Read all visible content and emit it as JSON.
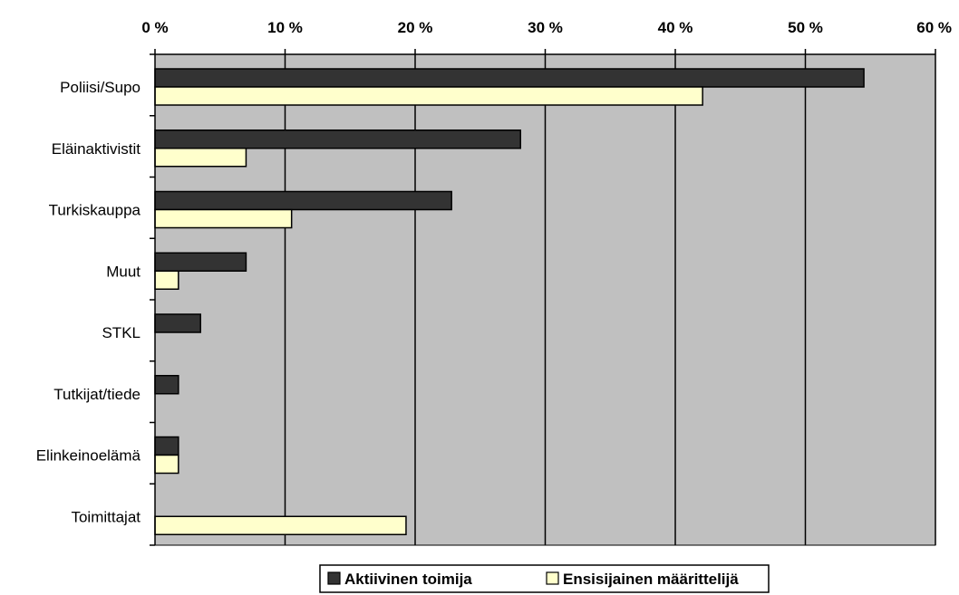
{
  "chart_data": {
    "type": "bar",
    "orientation": "horizontal",
    "categories": [
      "Poliisi/Supo",
      "Eläinaktivistit",
      "Turkiskauppa",
      "Muut",
      "STKL",
      "Tutkijat/tiede",
      "Elinkeinoelämä",
      "Toimittajat"
    ],
    "series": [
      {
        "name": "Aktiivinen toimija",
        "values": [
          54.5,
          28.1,
          22.8,
          7.0,
          3.5,
          1.8,
          1.8,
          0
        ],
        "color": "#333333"
      },
      {
        "name": "Ensisijainen määrittelijä",
        "values": [
          42.1,
          7.0,
          10.5,
          1.8,
          0,
          0,
          1.8,
          19.3
        ],
        "color": "#ffffcc"
      }
    ],
    "xlim": [
      0,
      60
    ],
    "xticks": [
      0,
      10,
      20,
      30,
      40,
      50,
      60
    ],
    "tick_labels": [
      "0 %",
      "10 %",
      "20 %",
      "30 %",
      "40 %",
      "50 %",
      "60 %"
    ],
    "x_axis_position": "top",
    "grid": true,
    "plot_background": "#c0c0c0",
    "legend_position": "bottom"
  }
}
